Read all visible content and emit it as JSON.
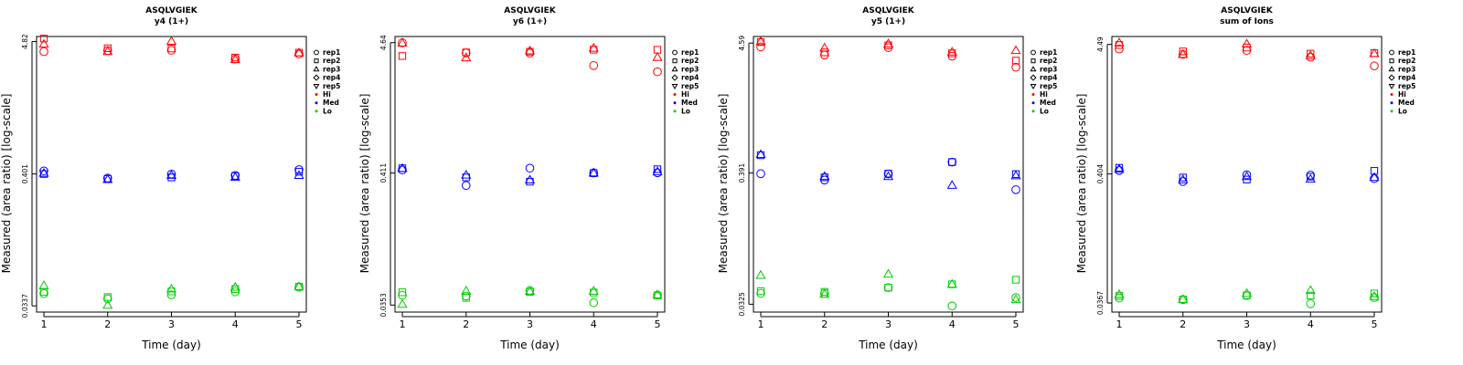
{
  "chart_data": [
    {
      "type": "scatter",
      "title": "ASQLVGIEK",
      "subtitle": "y4 (1+)",
      "xlabel": "Time (day)",
      "ylabel": "Measured (area ratio) [log-scale]",
      "y_scale": "log",
      "x_ticks": [
        1,
        2,
        3,
        4,
        5
      ],
      "y_ticks": [
        "0.0337",
        "0.401",
        "4.82"
      ],
      "y_tick_values": [
        0.0337,
        0.401,
        4.82
      ],
      "ylim": [
        0.03,
        5.3
      ],
      "legend_placement": "right",
      "series": [
        {
          "level": "Hi",
          "points": [
            {
              "rep": "rep1",
              "x": [
                1,
                2,
                3,
                4,
                5
              ],
              "y": [
                3.99,
                4.07,
                4.09,
                3.47,
                3.81
              ]
            },
            {
              "rep": "rep2",
              "x": [
                1,
                2,
                3,
                4,
                5
              ],
              "y": [
                5.1,
                4.25,
                4.23,
                3.57,
                3.91
              ]
            },
            {
              "rep": "rep3",
              "x": [
                1,
                2,
                3,
                4,
                5
              ],
              "y": [
                4.59,
                3.99,
                4.84,
                3.43,
                3.89
              ]
            }
          ]
        },
        {
          "level": "Med",
          "points": [
            {
              "rep": "rep1",
              "x": [
                1,
                2,
                3,
                4,
                5
              ],
              "y": [
                0.425,
                0.371,
                0.4,
                0.39,
                0.435
              ]
            },
            {
              "rep": "rep2",
              "x": [
                1,
                2,
                3,
                4,
                5
              ],
              "y": [
                0.401,
                0.366,
                0.376,
                0.386,
                0.418
              ]
            },
            {
              "rep": "rep3",
              "x": [
                1,
                2,
                3,
                4,
                5
              ],
              "y": [
                0.406,
                0.361,
                0.391,
                0.376,
                0.39
              ]
            }
          ]
        },
        {
          "level": "Lo",
          "points": [
            {
              "rep": "rep1",
              "x": [
                1,
                2,
                3,
                4,
                5
              ],
              "y": [
                0.0425,
                0.0385,
                0.0415,
                0.0439,
                0.0479
              ]
            },
            {
              "rep": "rep2",
              "x": [
                1,
                2,
                3,
                4,
                5
              ],
              "y": [
                0.0439,
                0.0398,
                0.0442,
                0.0462,
                0.0483
              ]
            },
            {
              "rep": "rep3",
              "x": [
                1,
                2,
                3,
                4,
                5
              ],
              "y": [
                0.0492,
                0.0341,
                0.0462,
                0.0478,
                0.0483
              ]
            }
          ]
        }
      ]
    },
    {
      "type": "scatter",
      "title": "ASQLVGIEK",
      "subtitle": "y6 (1+)",
      "xlabel": "Time (day)",
      "ylabel": "Measured (area ratio) [log-scale]",
      "y_scale": "log",
      "x_ticks": [
        1,
        2,
        3,
        4,
        5
      ],
      "y_ticks": [
        "0.0353",
        "0.411",
        "4.64"
      ],
      "y_tick_values": [
        0.0353,
        0.411,
        4.64
      ],
      "ylim": [
        0.031,
        5.2
      ],
      "legend_placement": "right",
      "series": [
        {
          "level": "Hi",
          "points": [
            {
              "rep": "rep1",
              "x": [
                1,
                2,
                3,
                4,
                5
              ],
              "y": [
                4.63,
                3.83,
                3.82,
                3.03,
                2.7
              ]
            },
            {
              "rep": "rep2",
              "x": [
                1,
                2,
                3,
                4,
                5
              ],
              "y": [
                3.62,
                3.87,
                3.92,
                4.07,
                4.06
              ]
            },
            {
              "rep": "rep3",
              "x": [
                1,
                2,
                3,
                4,
                5
              ],
              "y": [
                4.6,
                3.5,
                3.98,
                4.18,
                3.52
              ]
            }
          ]
        },
        {
          "level": "Med",
          "points": [
            {
              "rep": "rep1",
              "x": [
                1,
                2,
                3,
                4,
                5
              ],
              "y": [
                0.435,
                0.326,
                0.45,
                0.412,
                0.413
              ]
            },
            {
              "rep": "rep2",
              "x": [
                1,
                2,
                3,
                4,
                5
              ],
              "y": [
                0.449,
                0.379,
                0.35,
                0.41,
                0.441
              ]
            },
            {
              "rep": "rep3",
              "x": [
                1,
                2,
                3,
                4,
                5
              ],
              "y": [
                0.447,
                0.395,
                0.361,
                0.411,
                0.42
              ]
            }
          ]
        },
        {
          "level": "Lo",
          "points": [
            {
              "rep": "rep1",
              "x": [
                1,
                2,
                3,
                4,
                5
              ],
              "y": [
                0.0424,
                0.0418,
                0.0463,
                0.0369,
                0.0426
              ]
            },
            {
              "rep": "rep2",
              "x": [
                1,
                2,
                3,
                4,
                5
              ],
              "y": [
                0.0448,
                0.0404,
                0.0451,
                0.0446,
                0.0421
              ]
            },
            {
              "rep": "rep3",
              "x": [
                1,
                2,
                3,
                4,
                5
              ],
              "y": [
                0.0358,
                0.0458,
                0.0455,
                0.0457,
                0.0427
              ]
            }
          ]
        }
      ]
    },
    {
      "type": "scatter",
      "title": "ASQLVGIEK",
      "subtitle": "y5 (1+)",
      "xlabel": "Time (day)",
      "ylabel": "Measured (area ratio) [log-scale]",
      "y_scale": "log",
      "x_ticks": [
        1,
        2,
        3,
        4,
        5
      ],
      "y_ticks": [
        "0.0325",
        "0.391",
        "4.59"
      ],
      "y_tick_values": [
        0.0325,
        0.391,
        4.59
      ],
      "ylim": [
        0.028,
        5.2
      ],
      "legend_placement": "right",
      "series": [
        {
          "level": "Hi",
          "points": [
            {
              "rep": "rep1",
              "x": [
                1,
                2,
                3,
                4,
                5
              ],
              "y": [
                4.27,
                3.66,
                4.21,
                3.58,
                2.91
              ]
            },
            {
              "rep": "rep2",
              "x": [
                1,
                2,
                3,
                4,
                5
              ],
              "y": [
                4.68,
                3.85,
                4.4,
                3.78,
                3.29
              ]
            },
            {
              "rep": "rep3",
              "x": [
                1,
                2,
                3,
                4,
                5
              ],
              "y": [
                4.72,
                4.18,
                4.52,
                3.87,
                3.98
              ]
            }
          ]
        },
        {
          "level": "Med",
          "points": [
            {
              "rep": "rep1",
              "x": [
                1,
                2,
                3,
                4,
                5
              ],
              "y": [
                0.386,
                0.342,
                0.384,
                0.481,
                0.285
              ]
            },
            {
              "rep": "rep2",
              "x": [
                1,
                2,
                3,
                4,
                5
              ],
              "y": [
                0.548,
                0.36,
                0.386,
                0.481,
                0.383
              ]
            },
            {
              "rep": "rep3",
              "x": [
                1,
                2,
                3,
                4,
                5
              ],
              "y": [
                0.554,
                0.366,
                0.365,
                0.309,
                0.371
              ]
            }
          ]
        },
        {
          "level": "Lo",
          "points": [
            {
              "rep": "rep1",
              "x": [
                1,
                2,
                3,
                4,
                5
              ],
              "y": [
                0.0399,
                0.0399,
                0.0445,
                0.0315,
                0.0369
              ]
            },
            {
              "rep": "rep2",
              "x": [
                1,
                2,
                3,
                4,
                5
              ],
              "y": [
                0.0416,
                0.0411,
                0.0445,
                0.0474,
                0.0517
              ]
            },
            {
              "rep": "rep3",
              "x": [
                1,
                2,
                3,
                4,
                5
              ],
              "y": [
                0.0562,
                0.0392,
                0.0574,
                0.0474,
                0.0354
              ]
            }
          ]
        }
      ]
    },
    {
      "type": "scatter",
      "title": "ASQLVGIEK",
      "subtitle": "sum of Ions",
      "xlabel": "Time (day)",
      "ylabel": "Measured (area ratio) [log-scale]",
      "y_scale": "log",
      "x_ticks": [
        1,
        2,
        3,
        4,
        5
      ],
      "y_ticks": [
        "0.0367",
        "0.404",
        "4.49"
      ],
      "y_tick_values": [
        0.0367,
        0.404,
        4.49
      ],
      "ylim": [
        0.031,
        5.2
      ],
      "legend_placement": "right",
      "series": [
        {
          "level": "Hi",
          "points": [
            {
              "rep": "rep1",
              "x": [
                1,
                2,
                3,
                4,
                5
              ],
              "y": [
                4.12,
                3.73,
                4.02,
                3.54,
                3.01
              ]
            },
            {
              "rep": "rep2",
              "x": [
                1,
                2,
                3,
                4,
                5
              ],
              "y": [
                4.44,
                3.94,
                4.23,
                3.78,
                3.82
              ]
            },
            {
              "rep": "rep3",
              "x": [
                1,
                2,
                3,
                4,
                5
              ],
              "y": [
                4.61,
                3.72,
                4.52,
                3.63,
                3.78
              ]
            }
          ]
        },
        {
          "level": "Med",
          "points": [
            {
              "rep": "rep1",
              "x": [
                1,
                2,
                3,
                4,
                5
              ],
              "y": [
                0.431,
                0.351,
                0.398,
                0.395,
                0.371
              ]
            },
            {
              "rep": "rep2",
              "x": [
                1,
                2,
                3,
                4,
                5
              ],
              "y": [
                0.453,
                0.378,
                0.364,
                0.384,
                0.428
              ]
            },
            {
              "rep": "rep3",
              "x": [
                1,
                2,
                3,
                4,
                5
              ],
              "y": [
                0.441,
                0.362,
                0.385,
                0.366,
                0.378
              ]
            }
          ]
        },
        {
          "level": "Lo",
          "points": [
            {
              "rep": "rep1",
              "x": [
                1,
                2,
                3,
                4,
                5
              ],
              "y": [
                0.0403,
                0.0391,
                0.0422,
                0.0362,
                0.0406
              ]
            },
            {
              "rep": "rep2",
              "x": [
                1,
                2,
                3,
                4,
                5
              ],
              "y": [
                0.0418,
                0.0392,
                0.0423,
                0.0421,
                0.0438
              ]
            },
            {
              "rep": "rep3",
              "x": [
                1,
                2,
                3,
                4,
                5
              ],
              "y": [
                0.0429,
                0.0392,
                0.0438,
                0.0463,
                0.0413
              ]
            }
          ]
        }
      ]
    }
  ],
  "legend": {
    "reps": [
      {
        "label": "rep1",
        "shape": "circle"
      },
      {
        "label": "rep2",
        "shape": "square"
      },
      {
        "label": "rep3",
        "shape": "triangle-up"
      },
      {
        "label": "rep4",
        "shape": "diamond"
      },
      {
        "label": "rep5",
        "shape": "triangle-down"
      }
    ],
    "levels": [
      {
        "label": "Hi",
        "color": "#ff0000"
      },
      {
        "label": "Med",
        "color": "#0000ff"
      },
      {
        "label": "Lo",
        "color": "#00cc00"
      }
    ]
  }
}
